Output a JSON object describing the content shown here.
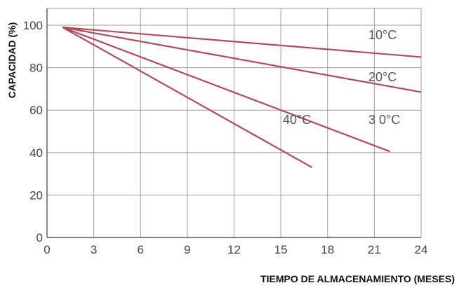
{
  "chart_data": {
    "type": "line",
    "title": "",
    "xlabel": "TIEMPO DE ALMACENAMIENTO (MESES)",
    "ylabel": "CAPACIDAD (%)",
    "xlim": [
      0,
      24
    ],
    "ylim": [
      0,
      100
    ],
    "x_ticks": [
      0,
      3,
      6,
      9,
      12,
      15,
      18,
      21,
      24
    ],
    "y_ticks": [
      0,
      20,
      40,
      60,
      80,
      100
    ],
    "grid": true,
    "line_color": "#b24a5a",
    "series": [
      {
        "label": "10°C",
        "x": [
          1,
          24
        ],
        "y": [
          99,
          85
        ]
      },
      {
        "label": "20°C",
        "x": [
          1,
          24
        ],
        "y": [
          99,
          68.5
        ]
      },
      {
        "label": "3 0°C",
        "x": [
          1,
          22
        ],
        "y": [
          99,
          40.5
        ]
      },
      {
        "label": "40°C",
        "x": [
          1,
          17
        ],
        "y": [
          99,
          33
        ]
      }
    ]
  }
}
